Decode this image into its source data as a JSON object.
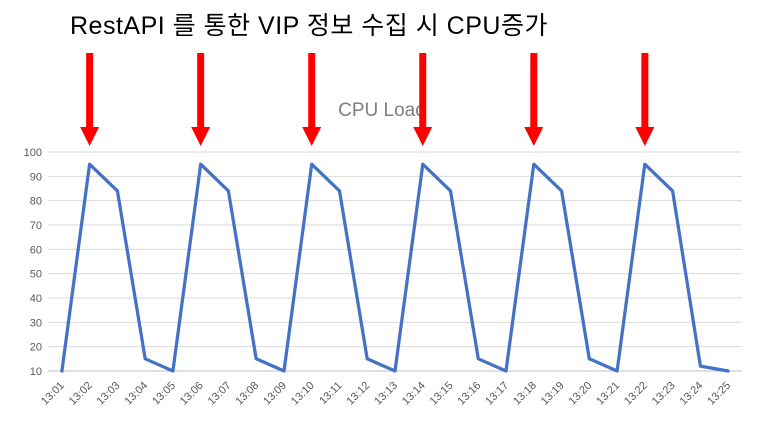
{
  "page": {
    "title": "RestAPI 를 통한 VIP 정보 수집 시 CPU증가"
  },
  "chart_data": {
    "type": "line",
    "title": "CPU Load",
    "xlabel": "",
    "ylabel": "",
    "legend": "none",
    "grid": true,
    "ylim": [
      10,
      100
    ],
    "ytick_interval": 10,
    "ytick_labels": [
      "10",
      "20",
      "30",
      "40",
      "50",
      "60",
      "70",
      "80",
      "90",
      "100"
    ],
    "categories": [
      "13:01",
      "13:02",
      "13:03",
      "13:04",
      "13:05",
      "13:06",
      "13:07",
      "13:08",
      "13:09",
      "13:10",
      "13:11",
      "13:12",
      "13:13",
      "13:14",
      "13:15",
      "13:16",
      "13:17",
      "13:18",
      "13:19",
      "13:20",
      "13:21",
      "13:22",
      "13:23",
      "13:24",
      "13:25"
    ],
    "series": [
      {
        "name": "CPU Load",
        "values": [
          10,
          95,
          84,
          15,
          10,
          95,
          84,
          15,
          10,
          95,
          84,
          15,
          10,
          95,
          84,
          15,
          10,
          95,
          84,
          15,
          10,
          95,
          84,
          12,
          10
        ]
      }
    ],
    "annotation_arrows": {
      "direction": "down",
      "at_categories": [
        "13:02",
        "13:06",
        "13:10",
        "13:14",
        "13:18",
        "13:22"
      ],
      "color": "#ff0000"
    },
    "colors": {
      "line": "#4472c4",
      "grid": "#d9d9d9",
      "axis_line": "#bfbfbf",
      "axis_text": "#595959",
      "chart_title_text": "#7f7f7f",
      "page_title_text": "#000000",
      "arrow": "#ff0000",
      "background": "#ffffff"
    }
  }
}
